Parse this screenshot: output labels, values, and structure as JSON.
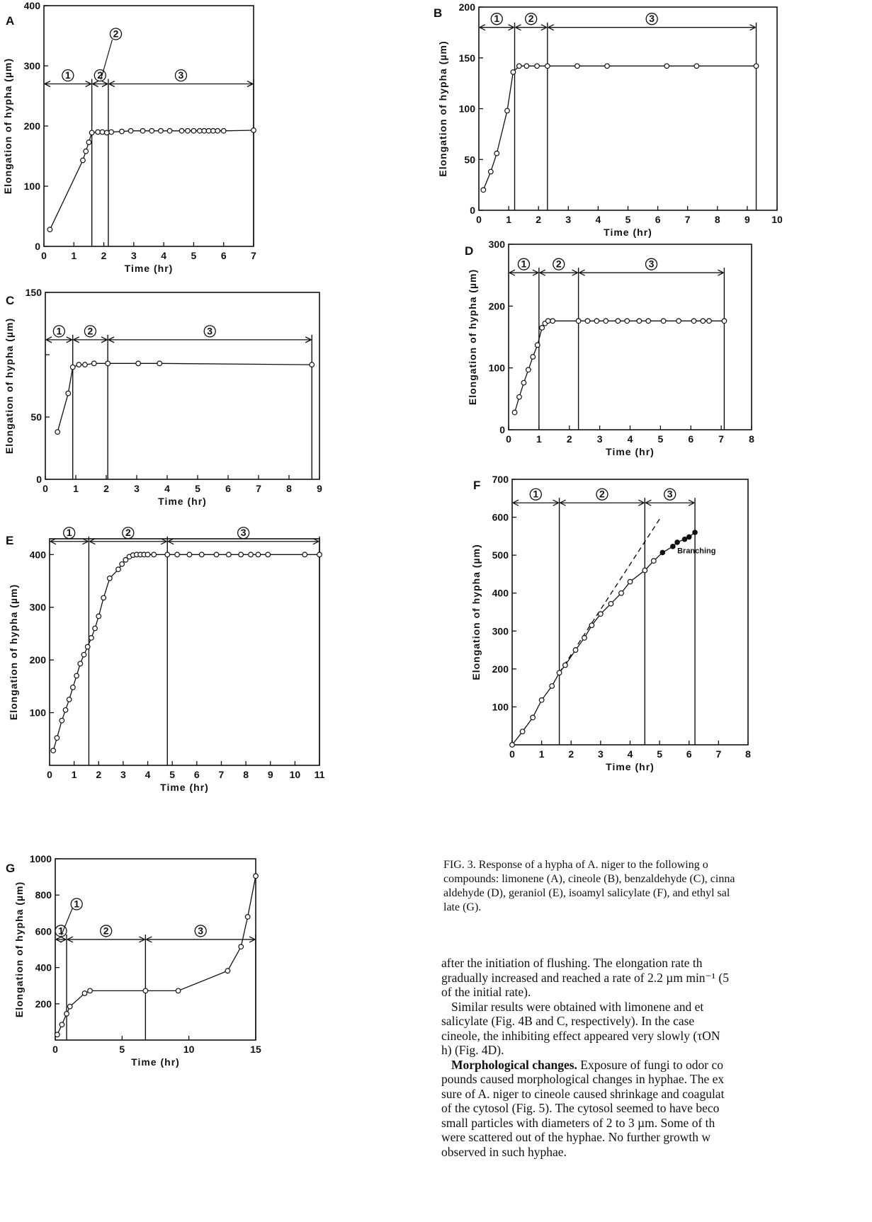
{
  "caption": {
    "label": "FIG. 3.",
    "line1": " Response of a hypha of A. niger to the following o",
    "line2": "compounds: limonene (A), cineole (B), benzaldehyde (C), cinna",
    "line3": "aldehyde (D), geraniol (E), isoamyl salicylate (F), and ethyl sal",
    "line4": "late (G)."
  },
  "body": {
    "l1": "after the initiation of flushing. The elongation rate th",
    "l2": "gradually increased and reached a rate of 2.2 µm min⁻¹ (5",
    "l3": "of the initial rate).",
    "l4": "Similar results were obtained with limonene and et",
    "l5": "salicylate (Fig. 4B and C, respectively). In the case",
    "l6": "cineole, the inhibiting effect appeared very slowly (τON",
    "l7": "h) (Fig. 4D).",
    "l8_head": "Morphological changes.",
    "l8_rest": " Exposure of fungi to odor co",
    "l9": "pounds caused morphological changes in hyphae. The ex",
    "l10": "sure of A. niger to cineole caused shrinkage and coagulat",
    "l11": "of the cytosol (Fig. 5). The cytosol seemed to have beco",
    "l12": "small particles with diameters of 2 to 3 µm. Some of th",
    "l13": "were scattered out of the hyphae. No further growth w",
    "l14": "observed in such hyphae."
  },
  "chart_data": [
    {
      "panel": "A",
      "type": "line",
      "xlabel": "Time (hr)",
      "ylabel": "Elongation of hypha (µm)",
      "xlim": [
        0,
        7
      ],
      "ylim": [
        0,
        400
      ],
      "xticks": [
        0,
        1,
        2,
        3,
        4,
        5,
        6,
        7
      ],
      "yticks": [
        0,
        100,
        200,
        300,
        400
      ],
      "xtick_labels": [
        "0",
        "1",
        "2",
        "3",
        "4",
        "5",
        "6",
        "7"
      ],
      "ytick_labels": [
        "0",
        "100",
        "200",
        "300",
        "400"
      ],
      "phase_boundaries": [
        0,
        1.6,
        2.15,
        7
      ],
      "phase_arrow_y": 270,
      "phases": [
        "①",
        "②",
        "③"
      ],
      "x": [
        0.2,
        1.3,
        1.4,
        1.5,
        1.6,
        1.8,
        1.95,
        2.1,
        2.25,
        2.6,
        2.9,
        3.3,
        3.6,
        3.9,
        4.2,
        4.6,
        4.8,
        5.0,
        5.2,
        5.35,
        5.5,
        5.65,
        5.8,
        6.0,
        7.0
      ],
      "y": [
        28,
        143,
        158,
        173,
        189,
        190,
        190,
        189,
        190,
        191,
        192,
        192,
        192,
        192,
        192,
        192,
        192,
        192,
        192,
        192,
        192,
        192,
        192,
        192,
        193
      ]
    },
    {
      "panel": "B",
      "type": "line",
      "xlabel": "Time (hr)",
      "ylabel": "Elongation of hypha (µm)",
      "xlim": [
        0,
        10
      ],
      "ylim": [
        0,
        200
      ],
      "xticks": [
        0,
        1,
        2,
        3,
        4,
        5,
        6,
        7,
        8,
        9,
        10
      ],
      "yticks": [
        0,
        50,
        100,
        150,
        200
      ],
      "xtick_labels": [
        "0",
        "1",
        "2",
        "3",
        "4",
        "5",
        "6",
        "7",
        "8",
        "9",
        "10"
      ],
      "ytick_labels": [
        "0",
        "50",
        "100",
        "150",
        "200"
      ],
      "phase_boundaries": [
        0,
        1.2,
        2.3,
        9.3
      ],
      "phase_arrow_y": 180,
      "phases": [
        "①",
        "②",
        "③"
      ],
      "x": [
        0.15,
        0.4,
        0.6,
        0.95,
        1.15,
        1.35,
        1.6,
        1.95,
        2.3,
        3.3,
        4.3,
        6.3,
        7.3,
        9.3
      ],
      "y": [
        20,
        38,
        56,
        98,
        136,
        142,
        142,
        142,
        142,
        142,
        142,
        142,
        142,
        142
      ]
    },
    {
      "panel": "C",
      "type": "line",
      "xlabel": "Time (hr)",
      "ylabel": "Elongation of hypha (µm)",
      "xlim": [
        0,
        9
      ],
      "ylim": [
        0,
        150
      ],
      "xticks": [
        0,
        1,
        2,
        3,
        4,
        5,
        6,
        7,
        8,
        9
      ],
      "yticks": [
        0,
        50,
        100,
        150
      ],
      "xtick_labels": [
        "0",
        "1",
        "2",
        "3",
        "4",
        "5",
        "6",
        "7",
        "8",
        "9"
      ],
      "ytick_labels": [
        "0",
        "50",
        "",
        "150"
      ],
      "phase_boundaries": [
        0,
        0.9,
        2.05,
        8.75
      ],
      "phase_arrow_y": 112,
      "phases": [
        "①",
        "②",
        "③"
      ],
      "x": [
        0.4,
        0.75,
        0.9,
        1.1,
        1.3,
        1.6,
        2.05,
        3.05,
        3.75,
        8.75
      ],
      "y": [
        38,
        69,
        90,
        92,
        92,
        93,
        93,
        93,
        93,
        92
      ]
    },
    {
      "panel": "D",
      "type": "line",
      "xlabel": "Time (hr)",
      "ylabel": "Elongation of hypha (µm)",
      "xlim": [
        0,
        8
      ],
      "ylim": [
        0,
        300
      ],
      "xticks": [
        0,
        1,
        2,
        3,
        4,
        5,
        6,
        7,
        8
      ],
      "yticks": [
        0,
        100,
        200,
        300
      ],
      "xtick_labels": [
        "0",
        "1",
        "2",
        "3",
        "4",
        "5",
        "6",
        "7",
        "8"
      ],
      "ytick_labels": [
        "0",
        "100",
        "200",
        "300"
      ],
      "phase_boundaries": [
        0,
        1.0,
        2.3,
        7.1
      ],
      "phase_arrow_y": 254,
      "phases": [
        "①",
        "②",
        "③"
      ],
      "x": [
        0.2,
        0.35,
        0.5,
        0.65,
        0.8,
        0.95,
        1.1,
        1.2,
        1.3,
        1.45,
        2.3,
        2.6,
        2.9,
        3.2,
        3.6,
        3.9,
        4.3,
        4.6,
        5.1,
        5.6,
        6.1,
        6.4,
        6.6,
        7.1
      ],
      "y": [
        28,
        53,
        76,
        97,
        118,
        137,
        165,
        172,
        176,
        176,
        176,
        176,
        176,
        176,
        176,
        176,
        176,
        176,
        176,
        176,
        176,
        176,
        176,
        176
      ]
    },
    {
      "panel": "E",
      "type": "line",
      "xlabel": "Time (hr)",
      "ylabel": "Elongation of hypha (µm)",
      "xlim": [
        0,
        11
      ],
      "ylim": [
        0,
        430
      ],
      "xticks": [
        0,
        1,
        2,
        3,
        4,
        5,
        6,
        7,
        8,
        9,
        10,
        11
      ],
      "yticks": [
        100,
        200,
        300,
        400
      ],
      "xtick_labels": [
        "0",
        "1",
        "2",
        "3",
        "4",
        "5",
        "6",
        "7",
        "8",
        "9",
        "10",
        "11"
      ],
      "ytick_labels": [
        "100",
        "200",
        "300",
        "400"
      ],
      "phase_boundaries": [
        0,
        1.6,
        4.8,
        11.0
      ],
      "phase_arrow_y": 425,
      "phases": [
        "①",
        "②",
        "③"
      ],
      "x": [
        0.15,
        0.3,
        0.5,
        0.65,
        0.8,
        0.95,
        1.1,
        1.25,
        1.4,
        1.55,
        1.7,
        1.85,
        2.0,
        2.2,
        2.45,
        2.8,
        2.95,
        3.1,
        3.25,
        3.4,
        3.55,
        3.7,
        3.85,
        4.0,
        4.25,
        4.8,
        5.2,
        5.7,
        6.2,
        6.8,
        7.3,
        7.8,
        8.2,
        8.5,
        8.9,
        10.4,
        11.0
      ],
      "y": [
        28,
        52,
        85,
        105,
        125,
        148,
        170,
        193,
        210,
        225,
        242,
        260,
        283,
        318,
        355,
        372,
        382,
        390,
        396,
        399,
        400,
        400,
        400,
        400,
        400,
        400,
        400,
        400,
        400,
        400,
        400,
        400,
        400,
        400,
        400,
        400,
        400
      ]
    },
    {
      "panel": "F",
      "type": "line",
      "xlabel": "Time (hr)",
      "ylabel": "Elongation of hypha (µm)",
      "xlim": [
        0,
        8
      ],
      "ylim": [
        0,
        700
      ],
      "xticks": [
        0,
        1,
        2,
        3,
        4,
        5,
        6,
        7,
        8
      ],
      "yticks": [
        100,
        200,
        300,
        400,
        500,
        600,
        700
      ],
      "xtick_labels": [
        "0",
        "1",
        "2",
        "3",
        "4",
        "5",
        "6",
        "7",
        "8"
      ],
      "ytick_labels": [
        "100",
        "200",
        "300",
        "400",
        "500",
        "600",
        "700"
      ],
      "phase_boundaries": [
        0,
        1.6,
        4.5,
        6.2
      ],
      "phase_arrow_y": 638,
      "phases": [
        "①",
        "②",
        "③"
      ],
      "x": [
        0,
        0.35,
        0.7,
        1.0,
        1.35,
        1.6,
        1.8,
        2.15,
        2.45,
        2.7,
        3.0,
        3.35,
        3.7,
        4.0,
        4.5,
        4.8
      ],
      "y": [
        0,
        35,
        72,
        118,
        155,
        190,
        210,
        250,
        282,
        315,
        345,
        372,
        400,
        430,
        460,
        485
      ],
      "filled_x": [
        5.1,
        5.45,
        5.6,
        5.85,
        6.0,
        6.2
      ],
      "filled_y": [
        507,
        523,
        534,
        542,
        548,
        560
      ],
      "dashed": [
        [
          1.6,
          190
        ],
        [
          5.0,
          595
        ]
      ],
      "annotation": "Branching"
    },
    {
      "panel": "G",
      "type": "line",
      "xlabel": "Time (hr)",
      "ylabel": "Elongation of hypha (µm)",
      "xlim": [
        0,
        15
      ],
      "ylim": [
        0,
        1000
      ],
      "xticks": [
        0,
        5,
        10,
        15
      ],
      "yticks": [
        200,
        400,
        600,
        800,
        1000
      ],
      "xtick_labels": [
        "0",
        "5",
        "10",
        "15"
      ],
      "ytick_labels": [
        "200",
        "400",
        "600",
        "800",
        "1000"
      ],
      "phase_boundaries": [
        0,
        0.85,
        6.75,
        15
      ],
      "phase_arrow_y": 555,
      "phases": [
        "①",
        "②",
        "③"
      ],
      "x": [
        0.15,
        0.5,
        0.85,
        1.1,
        2.2,
        2.6,
        6.75,
        9.2,
        12.9,
        13.9,
        14.4,
        15.0
      ],
      "y": [
        30,
        85,
        145,
        185,
        258,
        272,
        272,
        272,
        382,
        515,
        680,
        905
      ]
    }
  ]
}
